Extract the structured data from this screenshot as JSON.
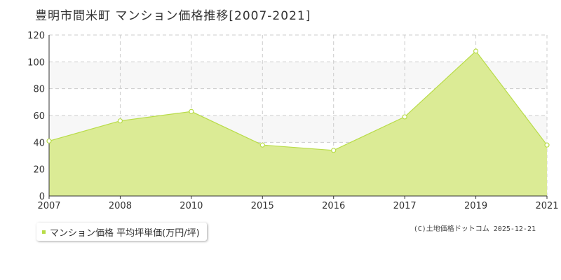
{
  "page": {
    "title": "豊明市間米町 マンション価格推移[2007-2021]",
    "credit": "(C)土地価格ドットコム 2025-12-21"
  },
  "legend": {
    "label": "マンション価格 平均坪単価(万円/坪)"
  },
  "colors": {
    "fill": "#dbeb95",
    "line": "#b8dc48",
    "marker_fill": "#ffffff",
    "marker_stroke": "#b8dc48",
    "grid": "#cccccc",
    "band": "#f7f7f7",
    "axis": "#333333"
  },
  "chart_data": {
    "type": "area",
    "categories": [
      "2007",
      "2008",
      "2010",
      "2015",
      "2016",
      "2017",
      "2019",
      "2021"
    ],
    "series": [
      {
        "name": "マンション価格 平均坪単価(万円/坪)",
        "values": [
          41,
          56,
          63,
          38,
          34,
          59,
          108,
          38
        ]
      }
    ],
    "ylim": [
      0,
      120
    ],
    "yticks": [
      0,
      20,
      40,
      60,
      80,
      100,
      120
    ],
    "grid": true,
    "legend_position": "bottom-left"
  }
}
